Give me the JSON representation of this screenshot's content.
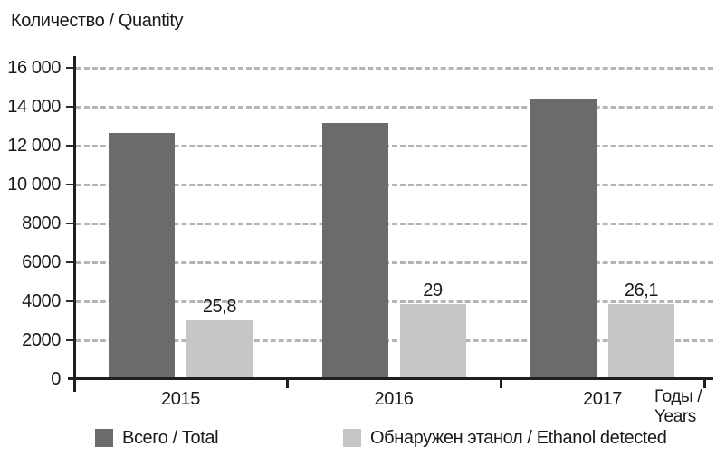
{
  "title": "Количество / Quantity",
  "x_axis_title": {
    "line1": "Годы /",
    "line2": "Years"
  },
  "colors": {
    "axis": "#1f1f1f",
    "gridline": "#b4b4b4",
    "text": "#1a1a1a",
    "total_bar": "#6b6b6b",
    "ethanol_bar": "#c6c6c6"
  },
  "legend": {
    "items": [
      {
        "label": "Всего / Total",
        "color": "#6b6b6b"
      },
      {
        "label": "Обнаружен этанол / Ethanol detected",
        "color": "#c6c6c6"
      }
    ]
  },
  "chart_data": {
    "type": "bar",
    "title": "Количество / Quantity",
    "xlabel": "Годы / Years",
    "ylabel": "Количество / Quantity",
    "categories": [
      "2015",
      "2016",
      "2017"
    ],
    "series": [
      {
        "name": "Всего / Total",
        "color": "#6b6b6b",
        "values": [
          12650,
          13180,
          14400
        ]
      },
      {
        "name": "Обнаружен этанол / Ethanol detected",
        "color": "#c6c6c6",
        "values": [
          3030,
          3850,
          3880
        ],
        "data_labels": [
          "25,8",
          "29",
          "26,1"
        ]
      }
    ],
    "ylim": [
      0,
      16000
    ],
    "ytick_interval": 2000,
    "ytick_labels": [
      "0",
      "2000",
      "4000",
      "6000",
      "8000",
      "10 000",
      "12 000",
      "14 000",
      "16 000"
    ],
    "grid": "horizontal-dashed",
    "legend_position": "bottom"
  }
}
